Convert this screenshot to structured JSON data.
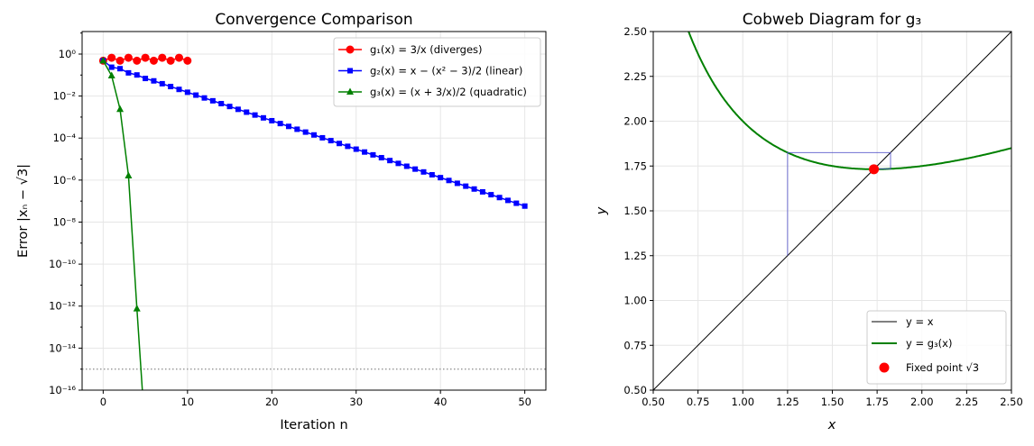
{
  "chart_data": [
    {
      "type": "line",
      "title": "Convergence Comparison",
      "xlabel": "Iteration n",
      "ylabel": "Error |xₙ − √3|",
      "xlim": [
        -2.5,
        52.5
      ],
      "ylim": [
        1e-16,
        11.8
      ],
      "yscale": "log",
      "grid": true,
      "legend_placement": "top-right",
      "xticks": [
        "0",
        "10",
        "20",
        "30",
        "40",
        "50"
      ],
      "yticks": [
        "10⁰",
        "10⁻²",
        "10⁻⁴",
        "10⁻⁶",
        "10⁻⁸",
        "10⁻¹⁰",
        "10⁻¹²",
        "10⁻¹⁴",
        "10⁻¹⁶"
      ],
      "reference_line": {
        "y": 1e-15,
        "style": "dotted",
        "color": "#999999"
      },
      "series": [
        {
          "name": "g₁(x) = 3/x (diverges)",
          "color": "#ff0000",
          "marker": "circle",
          "x": [
            0,
            1,
            2,
            3,
            4,
            5,
            6,
            7,
            8,
            9,
            10
          ],
          "y": [
            0.482,
            0.668,
            0.482,
            0.668,
            0.482,
            0.668,
            0.482,
            0.668,
            0.482,
            0.668,
            0.482
          ]
        },
        {
          "name": "g₂(x) = x − (x² − 3)/2 (linear)",
          "color": "#0000ff",
          "marker": "square",
          "x": [
            0,
            1,
            2,
            3,
            4,
            5,
            6,
            7,
            8,
            9,
            10,
            11,
            12,
            13,
            14,
            15,
            16,
            17,
            18,
            19,
            20,
            21,
            22,
            23,
            24,
            25,
            26,
            27,
            28,
            29,
            30,
            31,
            32,
            33,
            34,
            35,
            36,
            37,
            38,
            39,
            40,
            41,
            42,
            43,
            44,
            45,
            46,
            47,
            48,
            49,
            50
          ],
          "y": [
            0.482,
            0.237,
            0.2014,
            0.1271,
            0.1012,
            0.0689,
            0.0529,
            0.03872,
            0.02835,
            0.02075,
            0.01519,
            0.01112,
            0.008139,
            0.005958,
            0.004361,
            0.003192,
            0.002337,
            0.001711,
            0.001252,
            0.0009166,
            0.000671,
            0.0004911,
            0.0003595,
            0.0002632,
            0.0001927,
            0.000141,
            0.0001032,
            7.556e-05,
            5.531e-05,
            4.049e-05,
            2.964e-05,
            2.17e-05,
            1.588e-05,
            1.163e-05,
            8.511e-06,
            6.23e-06,
            4.56e-06,
            3.338e-06,
            2.444e-06,
            1.789e-06,
            1.309e-06,
            9.585e-07,
            7.016e-07,
            5.136e-07,
            3.76e-07,
            2.752e-07,
            2.015e-07,
            1.475e-07,
            1.08e-07,
            7.902e-08,
            5.784e-08
          ]
        },
        {
          "name": "g₃(x) = (x + 3/x)/2 (quadratic)",
          "color": "#008000",
          "marker": "triangle",
          "x": [
            0,
            1,
            2,
            3,
            4,
            5
          ],
          "y": [
            0.482,
            0.09295,
            0.002367,
            1.615e-06,
            7.53e-13,
            0
          ]
        }
      ]
    },
    {
      "type": "line",
      "title": "Cobweb Diagram for g₃",
      "xlabel": "x",
      "ylabel": "y",
      "xlim": [
        0.5,
        2.5
      ],
      "ylim": [
        0.5,
        2.5
      ],
      "grid": true,
      "legend_placement": "bottom-right",
      "xticks": [
        "0.50",
        "0.75",
        "1.00",
        "1.25",
        "1.50",
        "1.75",
        "2.00",
        "2.25",
        "2.50"
      ],
      "yticks": [
        "0.50",
        "0.75",
        "1.00",
        "1.25",
        "1.50",
        "1.75",
        "2.00",
        "2.25",
        "2.50"
      ],
      "series": [
        {
          "name": "y = x",
          "color": "#000000"
        },
        {
          "name": "y = g₃(x)",
          "color": "#008000"
        },
        {
          "name": "Fixed point √3",
          "color": "#ff0000",
          "x": [
            1.7320508
          ],
          "y": [
            1.7320508
          ]
        }
      ],
      "cobweb": {
        "color": "#4b4bc8",
        "iterates": [
          1.25,
          1.825,
          1.7344,
          1.73205
        ]
      }
    }
  ]
}
